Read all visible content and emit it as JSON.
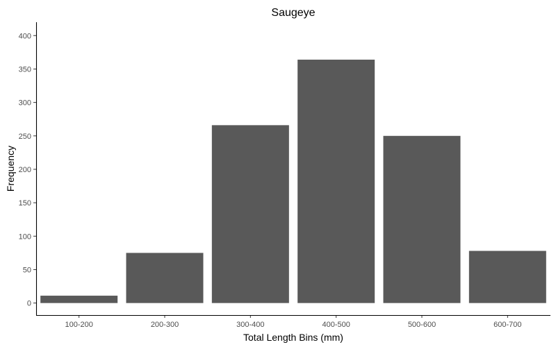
{
  "chart_data": {
    "type": "bar",
    "title": "Saugeye",
    "xlabel": "Total Length Bins (mm)",
    "ylabel": "Frequency",
    "categories": [
      "100-200",
      "200-300",
      "300-400",
      "400-500",
      "500-600",
      "600-700"
    ],
    "values": [
      11,
      75,
      266,
      364,
      250,
      78
    ],
    "ylim": [
      -18,
      420
    ],
    "yticks": [
      0,
      50,
      100,
      150,
      200,
      250,
      300,
      350,
      400
    ],
    "bar_color": "#595959",
    "grid": false,
    "legend": "none"
  }
}
